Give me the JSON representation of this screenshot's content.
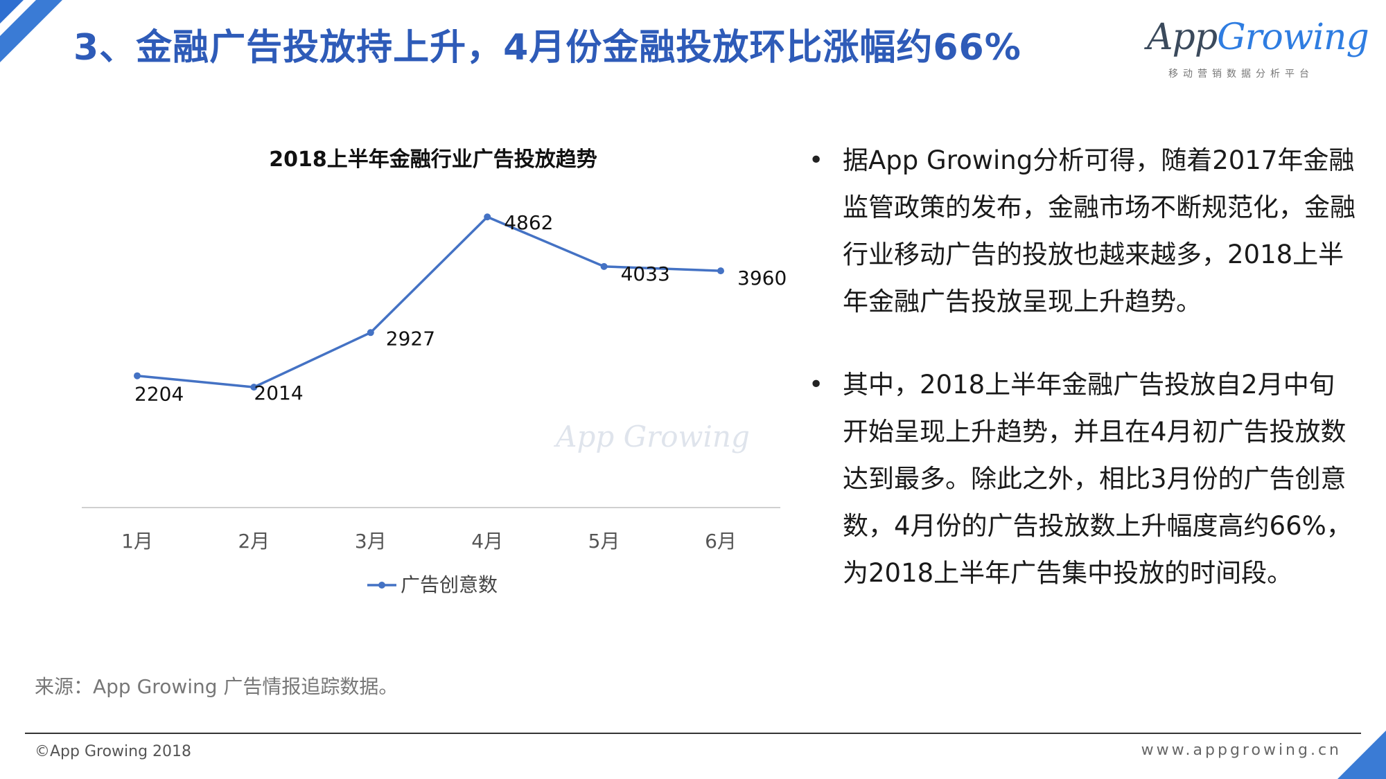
{
  "header": {
    "title": "3、金融广告投放持上升，4月份金融投放环比涨幅约66%"
  },
  "logo": {
    "text_app": "App",
    "text_growing": "Growing",
    "subtitle": "移动营销数据分析平台"
  },
  "colors": {
    "accent": "#2e5bb8",
    "series_line": "#4472c4",
    "corner": "#3a7bd5"
  },
  "chart_data": {
    "type": "line",
    "title": "2018上半年金融行业广告投放趋势",
    "categories": [
      "1月",
      "2月",
      "3月",
      "4月",
      "5月",
      "6月"
    ],
    "series": [
      {
        "name": "广告创意数",
        "values": [
          2204,
          2014,
          2927,
          4862,
          4033,
          3960
        ]
      }
    ],
    "ylim": [
      0,
      6000
    ],
    "grid": false,
    "legend": "bottom",
    "watermark": "App Growing"
  },
  "bullets": [
    "据App Growing分析可得，随着2017年金融监管政策的发布，金融市场不断规范化，金融行业移动广告的投放也越来越多，2018上半年金融广告投放呈现上升趋势。",
    "其中，2018上半年金融广告投放自2月中旬开始呈现上升趋势，并且在4月初广告投放数达到最多。除此之外，相比3月份的广告创意数，4月份的广告投放数上升幅度高约66%，为2018上半年广告集中投放的时间段。"
  ],
  "footer": {
    "source": "来源：App Growing 广告情报追踪数据。",
    "copyright": "©App Growing 2018",
    "website": "www.appgrowing.cn"
  }
}
